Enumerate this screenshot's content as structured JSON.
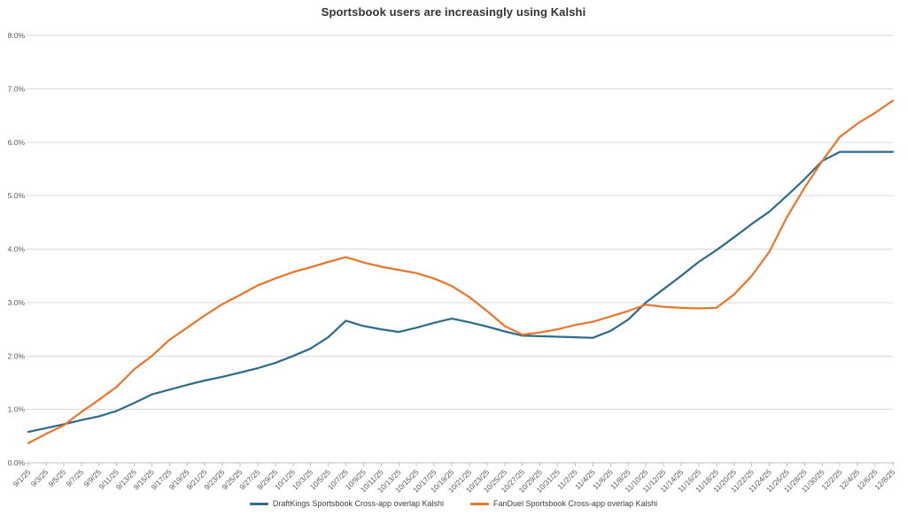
{
  "colors": {
    "draftkings_blue": "#2F6B8A",
    "fanduel_orange": "#E8772E",
    "gridline": "#D9D9D9",
    "axis_line": "#BFBFBF",
    "axis_text": "#595959",
    "title_text": "#333333"
  },
  "y_axis": {
    "ticks": [
      "0.0%",
      "1.0%",
      "2.0%",
      "3.0%",
      "4.0%",
      "5.0%",
      "6.0%",
      "7.0%",
      "8.0%"
    ]
  },
  "chart_data": {
    "type": "line",
    "title": "Sportsbook users are increasingly using Kalshi",
    "xlabel": "",
    "ylabel": "",
    "ylim": [
      0,
      8
    ],
    "y_tick_step": 1,
    "y_tick_format": "0.0%",
    "grid": true,
    "legend_position": "bottom",
    "x": [
      "9/1/25",
      "9/3/25",
      "9/5/25",
      "9/7/25",
      "9/9/25",
      "9/11/25",
      "9/13/25",
      "9/15/25",
      "9/17/25",
      "9/19/25",
      "9/21/25",
      "9/23/25",
      "9/25/25",
      "9/27/25",
      "9/29/25",
      "10/1/25",
      "10/3/25",
      "10/5/25",
      "10/7/25",
      "10/9/25",
      "10/11/25",
      "10/13/25",
      "10/15/25",
      "10/17/25",
      "10/19/25",
      "10/21/25",
      "10/23/25",
      "10/25/25",
      "10/27/25",
      "10/29/25",
      "10/31/25",
      "11/2/25",
      "11/4/25",
      "11/6/25",
      "11/8/25",
      "11/10/25",
      "11/12/25",
      "11/14/25",
      "11/16/25",
      "11/18/25",
      "11/20/25",
      "11/22/25",
      "11/24/25",
      "11/26/25",
      "11/28/25",
      "11/30/25",
      "12/2/25",
      "12/4/25",
      "12/6/25",
      "12/8/25"
    ],
    "series": [
      {
        "name": "DraftKings Sportsbook Cross-app overlap Kalshi",
        "color": "#2F6B8A",
        "values": [
          0.58,
          0.65,
          0.72,
          0.8,
          0.87,
          0.97,
          1.12,
          1.28,
          1.37,
          1.46,
          1.54,
          1.61,
          1.69,
          1.77,
          1.87,
          2.0,
          2.14,
          2.35,
          2.66,
          2.56,
          2.5,
          2.45,
          2.53,
          2.62,
          2.7,
          2.63,
          2.55,
          2.46,
          2.38,
          2.37,
          2.36,
          2.35,
          2.34,
          2.47,
          2.68,
          3.0,
          3.25,
          3.5,
          3.76,
          3.98,
          4.22,
          4.47,
          4.7,
          5.0,
          5.31,
          5.65,
          5.82,
          5.82,
          5.82,
          5.82
        ]
      },
      {
        "name": "FanDuel Sportsbook Cross-app overlap Kalshi",
        "color": "#E8772E",
        "values": [
          0.37,
          0.54,
          0.7,
          0.95,
          1.18,
          1.42,
          1.75,
          2.0,
          2.3,
          2.53,
          2.76,
          2.97,
          3.14,
          3.32,
          3.45,
          3.57,
          3.66,
          3.76,
          3.85,
          3.75,
          3.67,
          3.61,
          3.55,
          3.45,
          3.31,
          3.1,
          2.84,
          2.56,
          2.4,
          2.44,
          2.5,
          2.58,
          2.64,
          2.74,
          2.84,
          2.96,
          2.92,
          2.9,
          2.89,
          2.9,
          3.15,
          3.5,
          3.95,
          4.6,
          5.15,
          5.65,
          6.1,
          6.35,
          6.55,
          6.78
        ]
      }
    ]
  }
}
